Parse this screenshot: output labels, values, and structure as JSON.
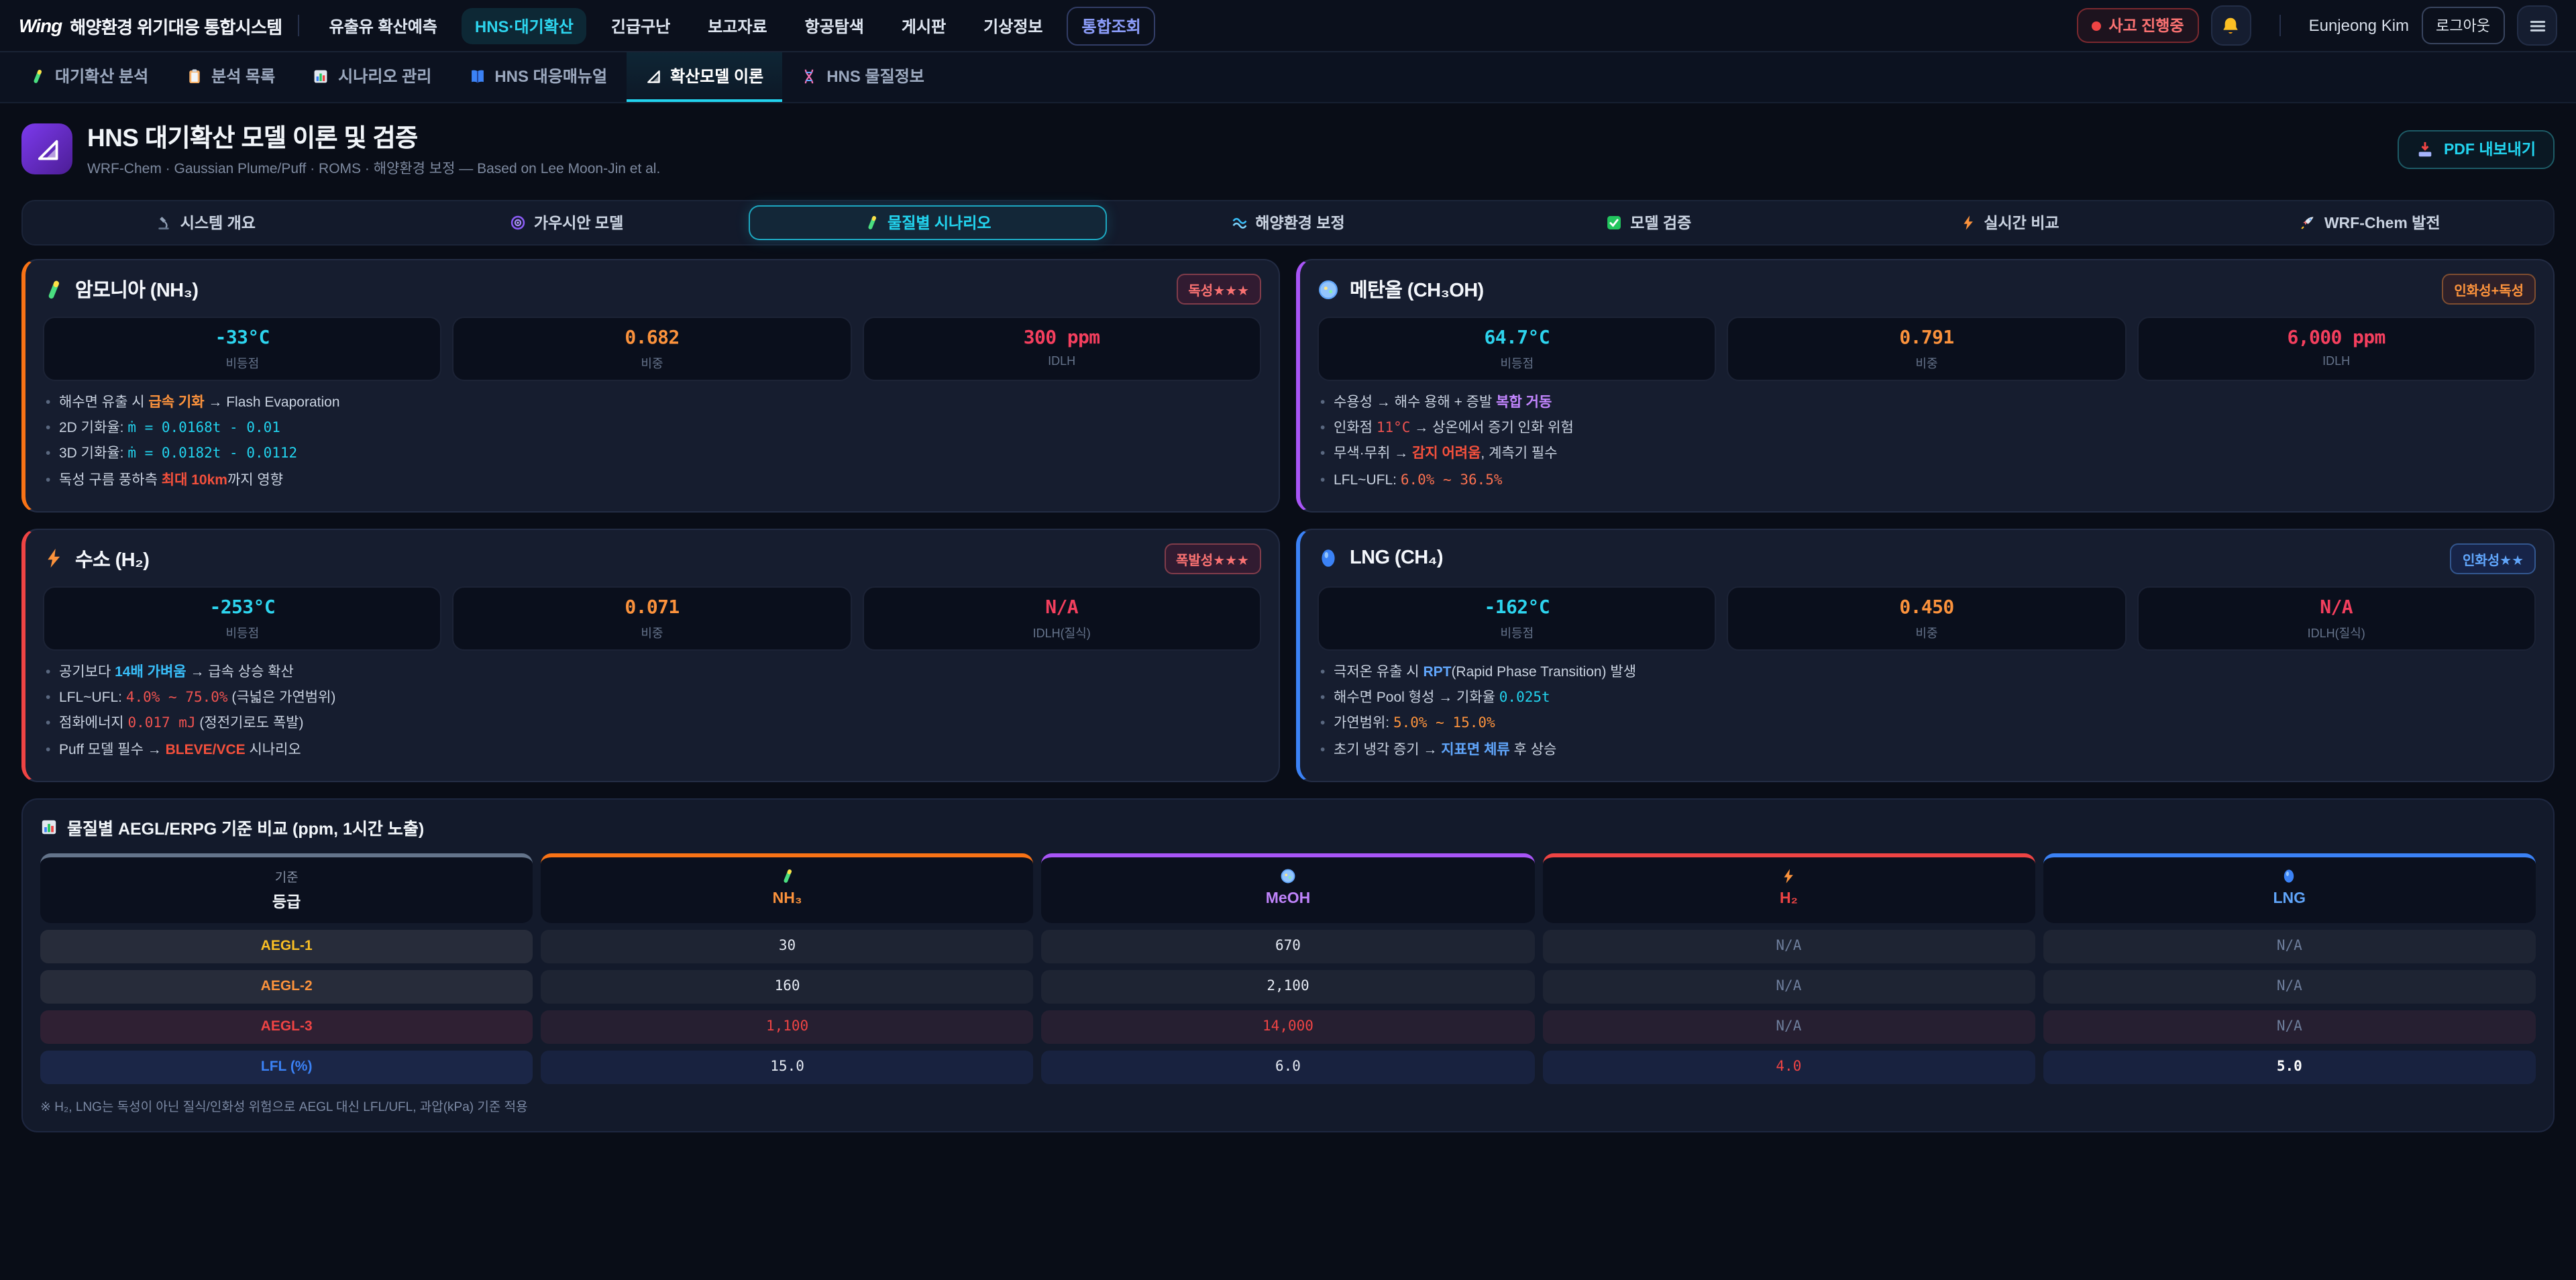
{
  "brand": {
    "logo": "Wing",
    "title": "해양환경 위기대응 통합시스템"
  },
  "topbar": {
    "menu": [
      {
        "label": "유출유 확산예측",
        "active": false,
        "highlight": false
      },
      {
        "label": "HNS·대기확산",
        "active": true,
        "highlight": false
      },
      {
        "label": "긴급구난",
        "active": false,
        "highlight": false
      },
      {
        "label": "보고자료",
        "active": false,
        "highlight": false
      },
      {
        "label": "항공탐색",
        "active": false,
        "highlight": false
      },
      {
        "label": "게시판",
        "active": false,
        "highlight": false
      },
      {
        "label": "기상정보",
        "active": false,
        "highlight": false
      },
      {
        "label": "통합조회",
        "active": false,
        "highlight": true
      }
    ],
    "status_label": "사고 진행중",
    "user_name": "Eunjeong Kim",
    "logout_label": "로그아웃"
  },
  "subnav": {
    "items": [
      {
        "icon": "test-tube-icon",
        "label": "대기확산 분석",
        "active": false
      },
      {
        "icon": "clipboard-icon",
        "label": "분석 목록",
        "active": false
      },
      {
        "icon": "bar-chart-icon",
        "label": "시나리오 관리",
        "active": false
      },
      {
        "icon": "book-icon",
        "label": "HNS 대응매뉴얼",
        "active": false
      },
      {
        "icon": "set-square-icon",
        "label": "확산모델 이론",
        "active": true
      },
      {
        "icon": "dna-icon",
        "label": "HNS 물질정보",
        "active": false
      }
    ]
  },
  "header": {
    "title": "HNS 대기확산 모델 이론 및 검증",
    "subtitle": "WRF-Chem · Gaussian Plume/Puff · ROMS · 해양환경 보정 — Based on Lee Moon-Jin et al.",
    "export_label": "PDF 내보내기"
  },
  "tabs": [
    {
      "icon": "microscope-icon",
      "label": "시스템 개요",
      "active": false
    },
    {
      "icon": "swirl-icon",
      "label": "가우시안 모델",
      "active": false
    },
    {
      "icon": "test-tube-icon",
      "label": "물질별 시나리오",
      "active": true
    },
    {
      "icon": "wave-icon",
      "label": "해양환경 보정",
      "active": false
    },
    {
      "icon": "check-icon",
      "label": "모델 검증",
      "active": false
    },
    {
      "icon": "bolt-icon",
      "label": "실시간 비교",
      "active": false
    },
    {
      "icon": "rocket-icon",
      "label": "WRF-Chem 발전",
      "active": false
    }
  ],
  "cards": [
    {
      "id": "nh3",
      "icon": "test-tube-icon",
      "title": "암모니아 (NH₃)",
      "accent": "#f97316",
      "badge": {
        "text": "독성★★★",
        "fg": "#f87171",
        "bg": "rgba(190,18,60,0.16)",
        "border": "rgba(248,113,113,0.4)"
      },
      "stats": [
        {
          "value": "-33°C",
          "color": "cyan",
          "label": "비등점"
        },
        {
          "value": "0.682",
          "color": "orange",
          "label": "비중"
        },
        {
          "value": "300 ppm",
          "color": "red",
          "label": "IDLH"
        }
      ],
      "bullets": [
        [
          {
            "t": "해수면 유출 시 "
          },
          {
            "t": "급속 기화",
            "c": "b-orange"
          },
          {
            "t": " → Flash Evaporation"
          }
        ],
        [
          {
            "t": "2D 기화율: "
          },
          {
            "t": "ṁ = 0.0168t - 0.01",
            "c": "m-cyan"
          }
        ],
        [
          {
            "t": "3D 기화율: "
          },
          {
            "t": "ṁ = 0.0182t - 0.0112",
            "c": "m-cyan"
          }
        ],
        [
          {
            "t": "독성 구름 풍하측 "
          },
          {
            "t": "최대 10km",
            "c": "b-red"
          },
          {
            "t": "까지 영향"
          }
        ]
      ]
    },
    {
      "id": "meoh",
      "icon": "petri-icon",
      "title": "메탄올 (CH₃OH)",
      "accent": "#a855f7",
      "badge": {
        "text": "인화성+독성",
        "fg": "#fb923c",
        "bg": "rgba(154,52,18,0.18)",
        "border": "rgba(251,146,60,0.4)"
      },
      "stats": [
        {
          "value": "64.7°C",
          "color": "cyan",
          "label": "비등점"
        },
        {
          "value": "0.791",
          "color": "orange",
          "label": "비중"
        },
        {
          "value": "6,000 ppm",
          "color": "red",
          "label": "IDLH"
        }
      ],
      "bullets": [
        [
          {
            "t": "수용성 → 해수 용해 + 증발 "
          },
          {
            "t": "복합 거동",
            "c": "b-purple"
          }
        ],
        [
          {
            "t": "인화점 "
          },
          {
            "t": "11°C",
            "c": "m-red"
          },
          {
            "t": " → 상온에서 증기 인화 위험"
          }
        ],
        [
          {
            "t": "무색·무취 → "
          },
          {
            "t": "감지 어려움",
            "c": "b-red"
          },
          {
            "t": ", 계측기 필수"
          }
        ],
        [
          {
            "t": "LFL~UFL: "
          },
          {
            "t": "6.0% ~ 36.5%",
            "c": "m-flame"
          }
        ]
      ]
    },
    {
      "id": "h2",
      "icon": "bolt-icon",
      "title": "수소 (H₂)",
      "accent": "#ef4444",
      "badge": {
        "text": "폭발성★★★",
        "fg": "#f87171",
        "bg": "rgba(190,18,60,0.16)",
        "border": "rgba(248,113,113,0.4)"
      },
      "stats": [
        {
          "value": "-253°C",
          "color": "cyan",
          "label": "비등점"
        },
        {
          "value": "0.071",
          "color": "orange",
          "label": "비중"
        },
        {
          "value": "N/A",
          "color": "red",
          "label": "IDLH(질식)"
        }
      ],
      "bullets": [
        [
          {
            "t": "공기보다 "
          },
          {
            "t": "14배 가벼움",
            "c": "b-cyan"
          },
          {
            "t": " → 급속 상승 확산"
          }
        ],
        [
          {
            "t": "LFL~UFL: "
          },
          {
            "t": "4.0% ~ 75.0%",
            "c": "m-red"
          },
          {
            "t": " (극넓은 가연범위)"
          }
        ],
        [
          {
            "t": "점화에너지 "
          },
          {
            "t": "0.017 mJ",
            "c": "m-red"
          },
          {
            "t": " (정전기로도 폭발)"
          }
        ],
        [
          {
            "t": "Puff 모델 필수 → "
          },
          {
            "t": "BLEVE/VCE",
            "c": "b-red"
          },
          {
            "t": " 시나리오"
          }
        ]
      ]
    },
    {
      "id": "lng",
      "icon": "droplet-icon",
      "title": "LNG (CH₄)",
      "accent": "#3b82f6",
      "badge": {
        "text": "인화성★★",
        "fg": "#60a5fa",
        "bg": "rgba(30,64,175,0.2)",
        "border": "rgba(96,165,250,0.4)"
      },
      "stats": [
        {
          "value": "-162°C",
          "color": "cyan",
          "label": "비등점"
        },
        {
          "value": "0.450",
          "color": "orange",
          "label": "비중"
        },
        {
          "value": "N/A",
          "color": "red",
          "label": "IDLH(질식)"
        }
      ],
      "bullets": [
        [
          {
            "t": "극저온 유출 시 "
          },
          {
            "t": "RPT",
            "c": "b-blue"
          },
          {
            "t": "(Rapid Phase Transition) 발생"
          }
        ],
        [
          {
            "t": "해수면 Pool 형성 → 기화율 "
          },
          {
            "t": "0.025t",
            "c": "m-cyan"
          }
        ],
        [
          {
            "t": "가연범위: "
          },
          {
            "t": "5.0% ~ 15.0%",
            "c": "m-orange"
          }
        ],
        [
          {
            "t": "초기 냉각 증기 → "
          },
          {
            "t": "지표면 체류",
            "c": "b-blue"
          },
          {
            "t": " 후 상승"
          }
        ]
      ]
    }
  ],
  "table": {
    "title": "물질별 AEGL/ERPG 기준 비교 (ppm, 1시간 노출)",
    "columns": [
      {
        "top": "기준",
        "label": "등급",
        "color": "#f1f5f9",
        "bar": "#64748b"
      },
      {
        "icon": "test-tube-icon",
        "label": "NH₃",
        "color": "#fb923c",
        "bar": "#f97316"
      },
      {
        "icon": "petri-icon",
        "label": "MeOH",
        "color": "#c084fc",
        "bar": "#a855f7"
      },
      {
        "icon": "bolt-icon",
        "label": "H₂",
        "color": "#ef4444",
        "bar": "#ef4444"
      },
      {
        "icon": "droplet-icon",
        "label": "LNG",
        "color": "#60a5fa",
        "bar": "#3b82f6"
      }
    ],
    "rows": [
      {
        "label": "AEGL-1",
        "label_color": "#fbbf24",
        "tint": "none",
        "values": [
          {
            "t": "30"
          },
          {
            "t": "670"
          },
          {
            "t": "N/A",
            "na": true
          },
          {
            "t": "N/A",
            "na": true
          }
        ]
      },
      {
        "label": "AEGL-2",
        "label_color": "#fb923c",
        "tint": "none",
        "values": [
          {
            "t": "160"
          },
          {
            "t": "2,100"
          },
          {
            "t": "N/A",
            "na": true
          },
          {
            "t": "N/A",
            "na": true
          }
        ]
      },
      {
        "label": "AEGL-3",
        "label_color": "#ef4444",
        "tint": "red",
        "values": [
          {
            "t": "1,100",
            "c": "#ef4444"
          },
          {
            "t": "14,000",
            "c": "#ef4444"
          },
          {
            "t": "N/A",
            "na": true
          },
          {
            "t": "N/A",
            "na": true
          }
        ]
      },
      {
        "label": "LFL (%)",
        "label_color": "#3b82f6",
        "tint": "blue",
        "values": [
          {
            "t": "15.0"
          },
          {
            "t": "6.0"
          },
          {
            "t": "4.0",
            "c": "#ef4444"
          },
          {
            "t": "5.0",
            "c": "#ffffff",
            "bold": true
          }
        ]
      }
    ],
    "note": "※ H₂, LNG는 독성이 아닌 질식/인화성 위험으로 AEGL 대신 LFL/UFL, 과압(kPa) 기준 적용"
  },
  "colors": {
    "accent": "#22d3ee",
    "background": "#090d17",
    "card": "#161d2f",
    "danger": "#ef4444",
    "warn": "#fb923c"
  }
}
